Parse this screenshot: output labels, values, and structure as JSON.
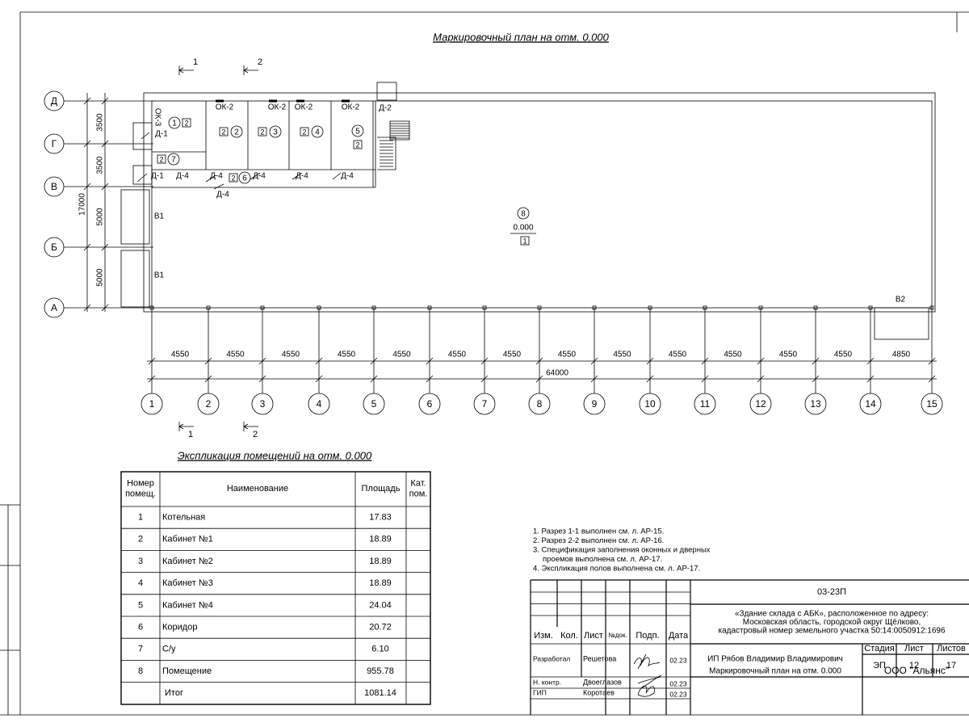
{
  "title": "Маркировочный план на отм. 0.000",
  "section_marks": {
    "top": [
      "1",
      "2"
    ],
    "bottom": [
      "1",
      "2"
    ]
  },
  "axes": {
    "letters": [
      "Д",
      "Г",
      "В",
      "Б",
      "А"
    ],
    "numbers": [
      "1",
      "2",
      "3",
      "4",
      "5",
      "6",
      "7",
      "8",
      "9",
      "10",
      "11",
      "12",
      "13",
      "14",
      "15"
    ]
  },
  "dimensions": {
    "vertical": [
      "3500",
      "3500",
      "5000",
      "5000"
    ],
    "vertical_total": "17000",
    "horizontal": [
      "4550",
      "4550",
      "4550",
      "4550",
      "4550",
      "4550",
      "4550",
      "4550",
      "4550",
      "4550",
      "4550",
      "4550",
      "4550",
      "4850"
    ],
    "horizontal_total": "64000"
  },
  "openings": [
    "ОК-3",
    "Д-1",
    "ОК-2",
    "ОК-2",
    "ОК-2",
    "ОК-2",
    "Д-2",
    "Д-1",
    "Д-4",
    "Д-4",
    "Д-4",
    "Д-4",
    "Д-4",
    "Д-4",
    "В1",
    "В1",
    "В2"
  ],
  "rooms": [
    {
      "number": "1",
      "floor": "2"
    },
    {
      "number": "2",
      "floor": "2"
    },
    {
      "number": "3",
      "floor": "2"
    },
    {
      "number": "4",
      "floor": "2"
    },
    {
      "number": "5",
      "floor": "2"
    },
    {
      "number": "6",
      "floor": "2"
    },
    {
      "number": "7",
      "floor": "2"
    },
    {
      "number": "8",
      "floor": "1",
      "level": "0.000"
    }
  ],
  "explication": {
    "title": "Экспликация помещений на отм. 0.000",
    "headers": [
      [
        "Номер",
        "помещ."
      ],
      [
        "Наименование"
      ],
      [
        "Площадь"
      ],
      [
        "Кат.",
        "пом."
      ]
    ],
    "rows": [
      [
        "1",
        "Котельная",
        "17.83"
      ],
      [
        "2",
        "Кабинет №1",
        "18.89"
      ],
      [
        "3",
        "Кабинет №2",
        "18.89"
      ],
      [
        "4",
        "Кабинет №3",
        "18.89"
      ],
      [
        "5",
        "Кабинет №4",
        "24.04"
      ],
      [
        "6",
        "Коридор",
        "20.72"
      ],
      [
        "7",
        "С/у",
        "6.10"
      ],
      [
        "8",
        "Помещение",
        "955.78"
      ]
    ],
    "total": [
      "Итог",
      "1081.14"
    ]
  },
  "notes": [
    "1. Разрез 1-1 выполнен см. л. АР-15.",
    "2. Разрез 2-2 выполнен см. л. АР-16.",
    "3. Спецификация заполнения оконных и дверных",
    "проемов выполнена см. л. АР-17.",
    "4. Экспликация полов выполнена см. л. АР-17."
  ],
  "title_block": {
    "code": "03-23П",
    "address": [
      "«Здание склада с АБК», расположенное по адресу:",
      "Московская область, городской округ Щёлково,",
      "кадастровый номер земельного участка 50:14:0050912:1696"
    ],
    "columns": [
      "Изм.",
      "Кол.",
      "Лист",
      "№док.",
      "Подп.",
      "Дата"
    ],
    "signers": [
      {
        "role": "Разработал",
        "name": "Решетова",
        "date": "02.23"
      },
      {
        "role": "Н. контр.",
        "name": "Двоеглазов",
        "date": "02.23"
      },
      {
        "role": "ГИП",
        "name": "Коротаев",
        "date": "02.23"
      }
    ],
    "organization_person": "ИП Рябов Владимир Владимирович",
    "stage_headers": [
      "Стадия",
      "Лист",
      "Листов"
    ],
    "stage_values": [
      "ЭП",
      "12",
      "17"
    ],
    "sheet_title": "Маркировочный план на отм. 0.000",
    "company": "ООО \"Альянс\""
  }
}
